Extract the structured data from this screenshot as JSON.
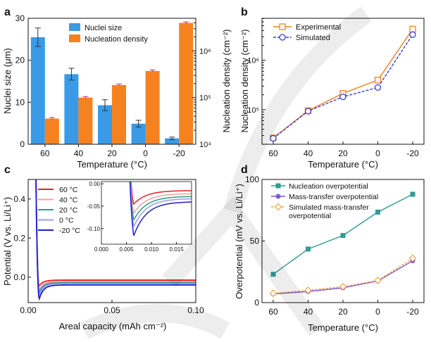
{
  "chart_data": [
    {
      "panel": "a",
      "type": "bar",
      "categories": [
        "60",
        "40",
        "20",
        "0",
        "-20"
      ],
      "xlabel": "Temperature (°C)",
      "ylabel_left": "Nuclei size (μm)",
      "ylabel_right": "Nucleation density (cm⁻²)",
      "ylim_left": [
        0,
        30
      ],
      "yticks_left": [
        0,
        10,
        20,
        30
      ],
      "ylim_right_log10": [
        4,
        6.7
      ],
      "yticks_right_labels": [
        "10⁴",
        "10⁵",
        "10⁶"
      ],
      "series": [
        {
          "name": "Nuclei size",
          "axis": "left",
          "color": "#3a9ae6",
          "values": [
            25.5,
            16.7,
            9.3,
            4.9,
            1.4
          ],
          "errors": [
            2.2,
            1.4,
            1.3,
            0.8,
            0.3
          ]
        },
        {
          "name": "Nucleation density",
          "axis": "right",
          "color": "#f5821f",
          "values_log10": [
            4.55,
            5.0,
            5.27,
            5.57,
            6.6
          ]
        }
      ]
    },
    {
      "panel": "b",
      "type": "line",
      "categories": [
        "60",
        "40",
        "20",
        "0",
        "-20"
      ],
      "xlabel": "Temperature (°C)",
      "ylabel": "Nucleation density (cm⁻²)",
      "ylim_log10": [
        4.3,
        6.85
      ],
      "yticks_labels": [
        "10⁵",
        "10⁶"
      ],
      "legend_position": "top-left",
      "series": [
        {
          "name": "Experimental",
          "color": "#f5821f",
          "marker": "square",
          "dash": false,
          "values_log10": [
            4.43,
            4.98,
            5.33,
            5.6,
            6.63
          ]
        },
        {
          "name": "Simulated",
          "color": "#3b3be0",
          "marker": "circle",
          "dash": true,
          "values_log10": [
            4.42,
            4.97,
            5.26,
            5.45,
            6.52
          ]
        }
      ]
    },
    {
      "panel": "c",
      "type": "line",
      "xlabel": "Areal capacity (mAh cm⁻²)",
      "ylabel": "Potential (V vs. Li/Li⁺)",
      "xlim": [
        0,
        0.1
      ],
      "ylim": [
        -0.13,
        0.5
      ],
      "xticks": [
        "0.00",
        "0.05",
        "0.10"
      ],
      "yticks": [
        "0.0",
        "0.2",
        "0.4"
      ],
      "legend_position": "top-left",
      "series": [
        {
          "name": "60 °C",
          "color": "#e8202a",
          "nucleation_min": -0.045,
          "plateau": -0.015
        },
        {
          "name": "40 °C",
          "color": "#f3a0a0",
          "nucleation_min": -0.065,
          "plateau": -0.022
        },
        {
          "name": "20 °C",
          "color": "#2e9c86",
          "nucleation_min": -0.08,
          "plateau": -0.028
        },
        {
          "name": "0 °C",
          "color": "#9b9bf0",
          "nucleation_min": -0.095,
          "plateau": -0.033
        },
        {
          "name": "-20 °C",
          "color": "#1f1fd0",
          "nucleation_min": -0.115,
          "plateau": -0.04
        }
      ],
      "inset": {
        "xlim": [
          0,
          0.018
        ],
        "ylim": [
          -0.135,
          0.005
        ],
        "xticks": [
          "0.000",
          "0.005",
          "0.010",
          "0.015"
        ],
        "yticks": [
          "0.00",
          "-0.05",
          "-0.10"
        ]
      }
    },
    {
      "panel": "d",
      "type": "line",
      "categories": [
        "60",
        "40",
        "20",
        "0",
        "-20"
      ],
      "xlabel": "Temperature (°C)",
      "ylabel": "Overpotential (mV vs. Li/Li⁺)",
      "ylim": [
        0,
        100
      ],
      "yticks": [
        0,
        50,
        100
      ],
      "legend_position": "top-left",
      "series": [
        {
          "name": "Nucleation overpotential",
          "color": "#2e9c94",
          "marker": "square",
          "dash": false,
          "values": [
            23,
            43.5,
            54.5,
            73.5,
            88
          ]
        },
        {
          "name": "Mass-transfer overpotential",
          "color": "#7d5bd8",
          "marker": "circle-filled",
          "dash": false,
          "values": [
            7,
            9,
            12,
            17.5,
            34
          ]
        },
        {
          "name": "Simulated mass-transfer",
          "name_line2": "overpotential",
          "color": "#f5a13d",
          "marker": "diamond",
          "dash": true,
          "values": [
            7.5,
            10,
            13,
            18,
            36
          ]
        }
      ]
    }
  ],
  "panel_labels": [
    "a",
    "b",
    "c",
    "d"
  ]
}
